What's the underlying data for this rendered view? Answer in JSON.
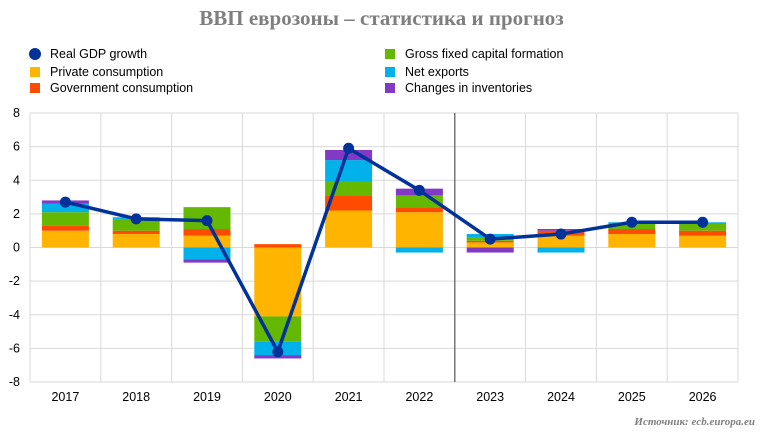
{
  "title": "ВВП еврозоны – статистика и прогноз",
  "source": "Источник: ecb.europa.eu",
  "chart_data": {
    "type": "bar",
    "stacked": true,
    "categories": [
      "2017",
      "2018",
      "2019",
      "2020",
      "2021",
      "2022",
      "2023",
      "2024",
      "2025",
      "2026"
    ],
    "ylim": [
      -8,
      8
    ],
    "yticks": [
      "-8",
      "-6",
      "-4",
      "-2",
      "0",
      "2",
      "4",
      "6",
      "8"
    ],
    "grid": "horizontal",
    "legend_position": "top",
    "forecast_divider_after": "2022",
    "series": [
      {
        "name": "Private consumption",
        "color": "#FFB400",
        "values": [
          1.0,
          0.8,
          0.7,
          -4.1,
          2.2,
          2.1,
          0.3,
          0.7,
          0.8,
          0.7
        ]
      },
      {
        "name": "Government consumption",
        "color": "#FF4B00",
        "values": [
          0.3,
          0.2,
          0.4,
          0.2,
          0.9,
          0.3,
          0.1,
          0.3,
          0.3,
          0.3
        ]
      },
      {
        "name": "Gross fixed capital formation",
        "color": "#65B800",
        "values": [
          0.8,
          0.7,
          1.3,
          -1.5,
          0.8,
          0.7,
          0.2,
          0.0,
          0.3,
          0.4
        ]
      },
      {
        "name": "Net exports",
        "color": "#00B1EA",
        "values": [
          0.5,
          0.1,
          -0.7,
          -0.8,
          1.3,
          -0.3,
          0.2,
          -0.3,
          0.1,
          0.1
        ]
      },
      {
        "name": "Changes in inventories",
        "color": "#8139C6",
        "values": [
          0.2,
          0.0,
          -0.2,
          -0.2,
          0.6,
          0.4,
          -0.3,
          0.1,
          0.0,
          0.0
        ]
      }
    ],
    "line": {
      "name": "Real GDP growth",
      "color": "#003299",
      "values": [
        2.7,
        1.7,
        1.6,
        -6.2,
        5.9,
        3.4,
        0.5,
        0.8,
        1.5,
        1.5
      ]
    }
  },
  "legend": [
    {
      "label": "Real GDP growth",
      "color": "#003299",
      "kind": "dot"
    },
    {
      "label": "Private consumption",
      "color": "#FFB400",
      "kind": "box"
    },
    {
      "label": "Government consumption",
      "color": "#FF4B00",
      "kind": "box"
    },
    {
      "label": "Gross fixed capital formation",
      "color": "#65B800",
      "kind": "box"
    },
    {
      "label": "Net exports",
      "color": "#00B1EA",
      "kind": "box"
    },
    {
      "label": "Changes in inventories",
      "color": "#8139C6",
      "kind": "box"
    }
  ]
}
